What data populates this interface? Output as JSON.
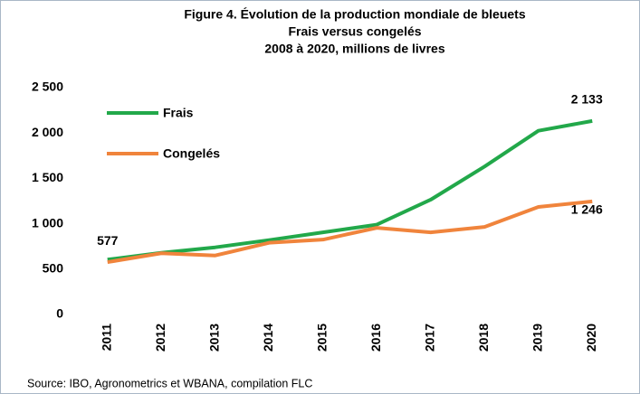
{
  "chart_data": {
    "type": "line",
    "title": [
      "Figure 4. Évolution de la production mondiale de bleuets",
      "Frais versus congelés",
      "2008 à 2020, millions de livres"
    ],
    "categories": [
      "2011",
      "2012",
      "2013",
      "2014",
      "2015",
      "2016",
      "2017",
      "2018",
      "2019",
      "2020"
    ],
    "series": [
      {
        "name": "Frais",
        "color": "#22a84a",
        "values": [
          605,
          680,
          740,
          820,
          905,
          990,
          1265,
          1630,
          2025,
          2133
        ],
        "value_labels": [
          null,
          null,
          null,
          null,
          null,
          null,
          null,
          null,
          null,
          "2 133"
        ]
      },
      {
        "name": "Congelés",
        "color": "#f0843c",
        "values": [
          577,
          675,
          650,
          790,
          825,
          955,
          905,
          965,
          1185,
          1246
        ],
        "value_labels": [
          "577",
          null,
          null,
          null,
          null,
          null,
          null,
          null,
          null,
          "1 246"
        ]
      }
    ],
    "ylim": [
      0,
      2500
    ],
    "yticks": [
      0,
      500,
      {
        "value": 1000,
        "label": "1 000"
      },
      {
        "value": 1500,
        "label": "1 500"
      },
      {
        "value": 2000,
        "label": "2 000"
      },
      {
        "value": 2500,
        "label": "2 500"
      }
    ],
    "grid": false,
    "legend": "upper left",
    "source": "Source: IBO, Agronometrics et WBANA, compilation FLC"
  }
}
